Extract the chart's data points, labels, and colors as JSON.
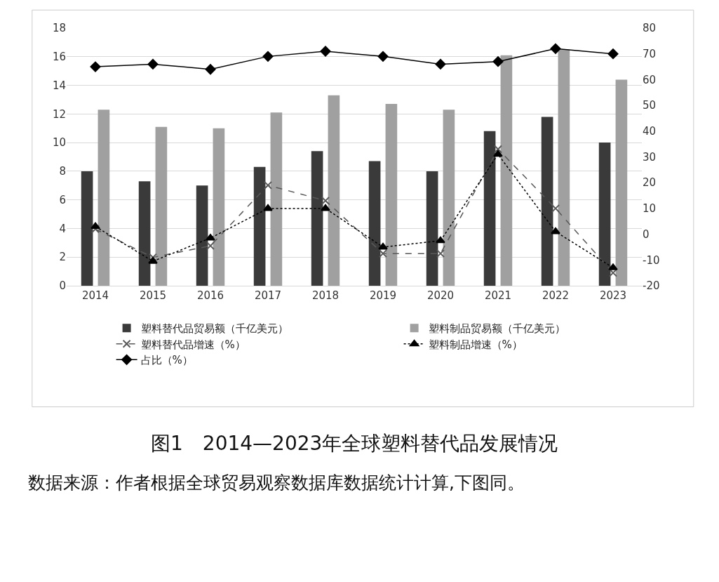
{
  "chart_data": {
    "type": "bar",
    "title": "图1　2014—2023年全球塑料替代品发展情况",
    "categories": [
      "2014",
      "2015",
      "2016",
      "2017",
      "2018",
      "2019",
      "2020",
      "2021",
      "2022",
      "2023"
    ],
    "series": [
      {
        "name": "塑料替代品贸易额（千亿美元）",
        "color": "#3a3a3a",
        "values": [
          8.0,
          7.3,
          7.0,
          8.3,
          9.4,
          8.7,
          8.0,
          10.8,
          11.8,
          10.0
        ]
      },
      {
        "name": "塑料制品贸易额（千亿美元）",
        "color": "#a0a0a0",
        "values": [
          12.3,
          11.1,
          11.0,
          12.1,
          13.3,
          12.7,
          12.3,
          16.1,
          16.5,
          14.4
        ]
      },
      {
        "name": "塑料替代品增速（%）",
        "type": "line",
        "axis": "y2",
        "color": "#595959",
        "marker": "cross",
        "line_style": "dashed",
        "values": [
          2,
          -9,
          -4.5,
          19,
          13,
          -7.5,
          -7.5,
          33,
          10,
          -15
        ]
      },
      {
        "name": "塑料制品增速（%）",
        "type": "line",
        "axis": "y2",
        "color": "#000000",
        "marker": "triangle",
        "line_style": "dotted",
        "values": [
          3,
          -10.5,
          -1.5,
          10,
          10,
          -5,
          -2.5,
          31,
          1,
          -13
        ]
      },
      {
        "name": "占比（%）",
        "type": "line",
        "axis": "y2",
        "color": "#000000",
        "marker": "diamond",
        "line_style": "solid",
        "values": [
          65,
          66,
          64,
          69,
          71,
          69,
          66,
          67,
          72,
          70
        ]
      }
    ],
    "ylim": [
      0,
      18
    ],
    "yticks": [
      0,
      2,
      4,
      6,
      8,
      10,
      12,
      14,
      16,
      18
    ],
    "y2lim": [
      -20,
      80
    ],
    "y2ticks": [
      -20,
      -10,
      0,
      10,
      20,
      30,
      40,
      50,
      60,
      70,
      80
    ],
    "grid": "y",
    "legend": "bottom",
    "annotations": [
      "数据来源：作者根据全球贸易观察数据库数据统计计算,下图同。"
    ]
  }
}
